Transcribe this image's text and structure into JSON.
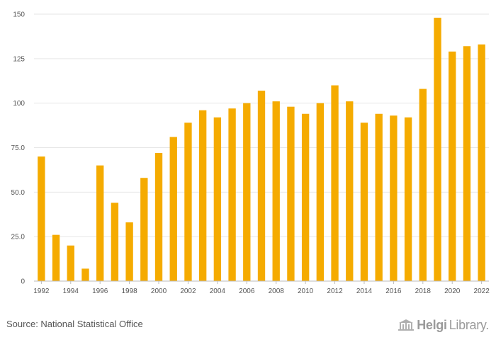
{
  "chart_data": {
    "type": "bar",
    "title": "",
    "xlabel": "",
    "ylabel": "",
    "ylim": [
      0,
      150
    ],
    "yticks": [
      0,
      25.0,
      50.0,
      75.0,
      100,
      125,
      150
    ],
    "ytick_labels": [
      "0",
      "25.0",
      "50.0",
      "75.0",
      "100",
      "125",
      "150"
    ],
    "categories": [
      "1992",
      "1993",
      "1994",
      "1995",
      "1996",
      "1997",
      "1998",
      "1999",
      "2000",
      "2001",
      "2002",
      "2003",
      "2004",
      "2005",
      "2006",
      "2007",
      "2008",
      "2009",
      "2010",
      "2011",
      "2012",
      "2013",
      "2014",
      "2015",
      "2016",
      "2017",
      "2018",
      "2019",
      "2020",
      "2021",
      "2022"
    ],
    "xtick_labels": [
      "1992",
      "1994",
      "1996",
      "1998",
      "2000",
      "2002",
      "2004",
      "2006",
      "2008",
      "2010",
      "2012",
      "2014",
      "2016",
      "2018",
      "2020",
      "2022"
    ],
    "values": [
      70,
      26,
      20,
      7,
      65,
      44,
      33,
      58,
      72,
      81,
      89,
      96,
      92,
      97,
      100,
      107,
      101,
      98,
      94,
      100,
      110,
      101,
      89,
      94,
      93,
      92,
      108,
      148,
      129,
      132,
      133
    ],
    "bar_color": "#f5ab00",
    "grid": true,
    "legend": "none"
  },
  "footer": {
    "source": "Source: National Statistical Office",
    "logo_helgi": "Helgi",
    "logo_library": "Library."
  }
}
